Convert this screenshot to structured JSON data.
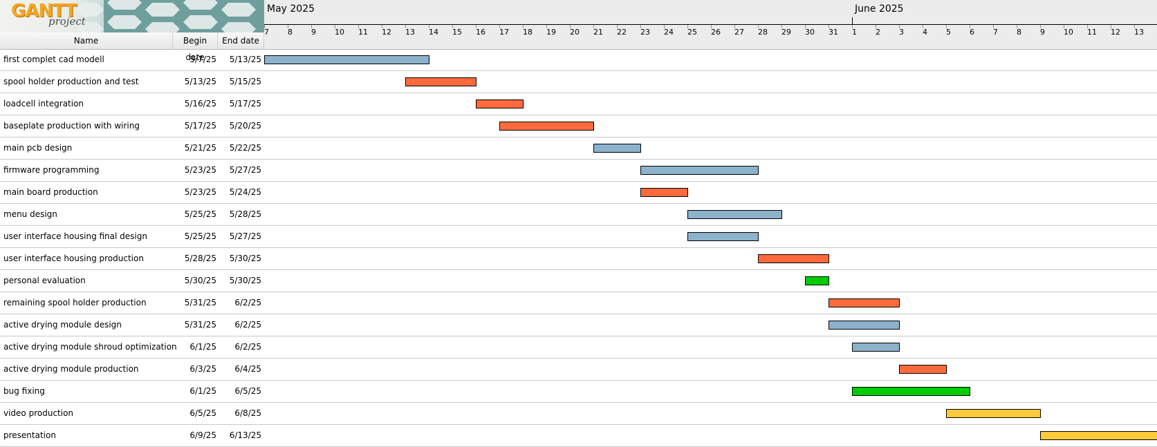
{
  "logo": {
    "word": "GANTT",
    "sub": "project"
  },
  "columns": {
    "name": "Name",
    "begin": "Begin date",
    "end": "End date"
  },
  "months": [
    "May 2025",
    "June 2025"
  ],
  "days": [
    "7",
    "8",
    "9",
    "10",
    "11",
    "12",
    "13",
    "14",
    "15",
    "16",
    "17",
    "18",
    "19",
    "20",
    "21",
    "22",
    "23",
    "24",
    "25",
    "26",
    "27",
    "28",
    "29",
    "30",
    "31",
    "1",
    "2",
    "3",
    "4",
    "5",
    "6",
    "7",
    "8",
    "9",
    "10",
    "11",
    "12",
    "13"
  ],
  "colors": {
    "blue": "#8cb2cc",
    "red": "#ff6a3d",
    "green": "#00cc00",
    "yellow": "#ffc93c"
  },
  "tasks": [
    {
      "name": "first complet cad modell",
      "begin": "5/7/25",
      "end": "5/13/25",
      "start_day": 0,
      "duration": 7,
      "color": "blue"
    },
    {
      "name": "spool holder production and test",
      "begin": "5/13/25",
      "end": "5/15/25",
      "start_day": 6,
      "duration": 3,
      "color": "red"
    },
    {
      "name": "loadcell integration",
      "begin": "5/16/25",
      "end": "5/17/25",
      "start_day": 9,
      "duration": 2,
      "color": "red"
    },
    {
      "name": "baseplate production with wiring",
      "begin": "5/17/25",
      "end": "5/20/25",
      "start_day": 10,
      "duration": 4,
      "color": "red"
    },
    {
      "name": "main pcb design",
      "begin": "5/21/25",
      "end": "5/22/25",
      "start_day": 14,
      "duration": 2,
      "color": "blue"
    },
    {
      "name": "firmware programming",
      "begin": "5/23/25",
      "end": "5/27/25",
      "start_day": 16,
      "duration": 5,
      "color": "blue"
    },
    {
      "name": "main board production",
      "begin": "5/23/25",
      "end": "5/24/25",
      "start_day": 16,
      "duration": 2,
      "color": "red"
    },
    {
      "name": "menu design",
      "begin": "5/25/25",
      "end": "5/28/25",
      "start_day": 18,
      "duration": 4,
      "color": "blue"
    },
    {
      "name": "user interface housing final design",
      "begin": "5/25/25",
      "end": "5/27/25",
      "start_day": 18,
      "duration": 3,
      "color": "blue"
    },
    {
      "name": "user interface housing production",
      "begin": "5/28/25",
      "end": "5/30/25",
      "start_day": 21,
      "duration": 3,
      "color": "red"
    },
    {
      "name": "personal evaluation",
      "begin": "5/30/25",
      "end": "5/30/25",
      "start_day": 23,
      "duration": 1,
      "color": "green"
    },
    {
      "name": "remaining spool holder production",
      "begin": "5/31/25",
      "end": "6/2/25",
      "start_day": 24,
      "duration": 3,
      "color": "red"
    },
    {
      "name": "active drying module design",
      "begin": "5/31/25",
      "end": "6/2/25",
      "start_day": 24,
      "duration": 3,
      "color": "blue"
    },
    {
      "name": "active drying module shroud optimization",
      "begin": "6/1/25",
      "end": "6/2/25",
      "start_day": 25,
      "duration": 2,
      "color": "blue"
    },
    {
      "name": "active drying module production",
      "begin": "6/3/25",
      "end": "6/4/25",
      "start_day": 27,
      "duration": 2,
      "color": "red"
    },
    {
      "name": "bug fixing",
      "begin": "6/1/25",
      "end": "6/5/25",
      "start_day": 25,
      "duration": 5,
      "color": "green"
    },
    {
      "name": "video production",
      "begin": "6/5/25",
      "end": "6/8/25",
      "start_day": 29,
      "duration": 4,
      "color": "yellow"
    },
    {
      "name": "presentation",
      "begin": "6/9/25",
      "end": "6/13/25",
      "start_day": 33,
      "duration": 5,
      "color": "yellow"
    }
  ]
}
